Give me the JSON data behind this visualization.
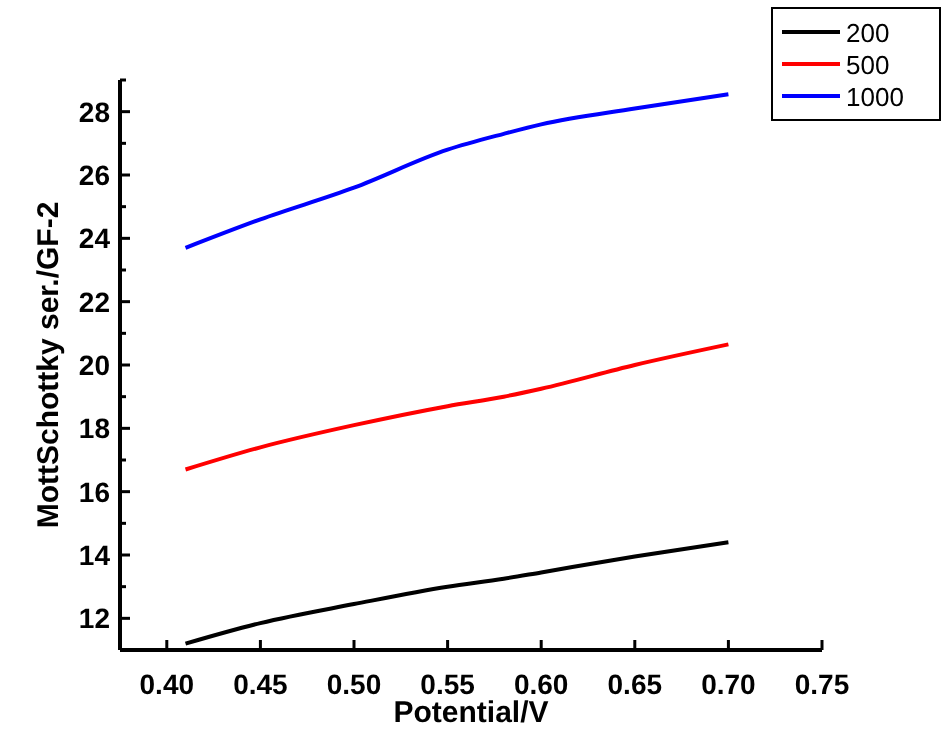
{
  "chart_data": {
    "type": "line",
    "xlabel": "Potential/V",
    "ylabel": "MottSchottky ser./GF-2",
    "xlim": [
      0.375,
      0.75
    ],
    "xticks": [
      {
        "value": 0.4,
        "label": "0.40"
      },
      0.45,
      {
        "value": 0.5,
        "label": "0.50"
      },
      0.55,
      {
        "value": 0.6,
        "label": "0.60"
      },
      0.65,
      {
        "value": 0.7,
        "label": "0.70"
      },
      0.75
    ],
    "ylim": [
      11,
      29
    ],
    "yticks": [
      12,
      {
        "value": 13,
        "label": null
      },
      14,
      {
        "value": 15,
        "label": null
      },
      16,
      {
        "value": 17,
        "label": null
      },
      18,
      {
        "value": 19,
        "label": null
      },
      20,
      {
        "value": 21,
        "label": null
      },
      22,
      {
        "value": 23,
        "label": null
      },
      24,
      {
        "value": 25,
        "label": null
      },
      26,
      {
        "value": 27,
        "label": null
      },
      28,
      {
        "value": 29,
        "label": null
      }
    ],
    "x": [
      0.41,
      0.45,
      0.5,
      0.55,
      0.58,
      0.6,
      0.65,
      0.7
    ],
    "series": [
      {
        "name": "200",
        "color": "#000000",
        "values": [
          11.2,
          11.85,
          12.45,
          13.0,
          13.25,
          13.45,
          13.95,
          14.4
        ]
      },
      {
        "name": "500",
        "color": "#ff0000",
        "values": [
          16.7,
          17.4,
          18.1,
          18.7,
          19.0,
          19.25,
          20.0,
          20.65
        ]
      },
      {
        "name": "1000",
        "color": "#0000ff",
        "values": [
          23.7,
          24.6,
          25.6,
          26.8,
          27.3,
          27.6,
          28.1,
          28.55
        ]
      }
    ],
    "legend": "top right",
    "grid": false,
    "marker": "none",
    "line_style": "solid"
  }
}
